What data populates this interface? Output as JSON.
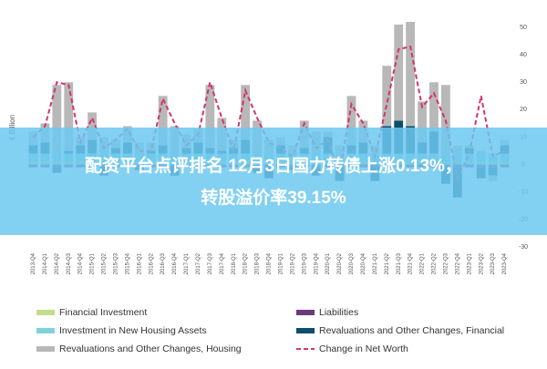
{
  "chart_data": {
    "type": "bar",
    "stacked": true,
    "y_label": "€ Billion",
    "categories": [
      "2013-Q4",
      "2014-Q1",
      "2014-Q2",
      "2014-Q3",
      "2014-Q4",
      "2015-Q1",
      "2015-Q2",
      "2015-Q3",
      "2015-Q4",
      "2016-Q1",
      "2016-Q2",
      "2016-Q3",
      "2016-Q4",
      "2017-Q1",
      "2017-Q2",
      "2017-Q3",
      "2017-Q4",
      "2018-Q1",
      "2018-Q2",
      "2018-Q3",
      "2018-Q4",
      "2019-Q1",
      "2019-Q2",
      "2019-Q3",
      "2019-Q4",
      "2020-Q1",
      "2020-Q2",
      "2020-Q3",
      "2020-Q4",
      "2021-Q1",
      "2021-Q2",
      "2021-Q3",
      "2021-Q4",
      "2022-Q1",
      "2022-Q2",
      "2022-Q3",
      "2022-Q4",
      "2023-Q1",
      "2023-Q2",
      "2023-Q3",
      "2023-Q4"
    ],
    "series": [
      {
        "name": "Financial Investment",
        "type": "bar",
        "color": "#c5dc8c",
        "values": [
          1,
          1,
          1,
          1,
          1,
          1,
          1,
          1,
          1,
          1,
          1,
          1,
          1,
          1,
          1,
          1,
          1,
          1,
          1,
          1,
          1,
          1,
          1,
          1,
          1,
          1,
          1,
          1,
          1,
          1,
          1,
          1,
          1,
          1,
          1,
          1,
          1,
          1,
          1,
          1,
          1
        ]
      },
      {
        "name": "Liabilities",
        "type": "bar",
        "color": "#6b3a7d",
        "values": [
          -1,
          -1,
          -1,
          -1,
          -1,
          -1,
          -1,
          -1,
          -1,
          -1,
          -1,
          -1,
          -1,
          -1,
          -1,
          -1,
          -1,
          -1,
          -1,
          -1,
          -1,
          -1,
          -1,
          -1,
          -1,
          -1,
          -1,
          -1,
          -1,
          -1,
          -1,
          -1,
          -1,
          -1,
          -1,
          -1,
          -1,
          -1,
          -1,
          -1,
          -1
        ]
      },
      {
        "name": "Investment in New Housing Assets",
        "type": "bar",
        "color": "#7fd3d8",
        "values": [
          3,
          3,
          3,
          3,
          3,
          3,
          3,
          3,
          3,
          3,
          3,
          3,
          3,
          3,
          3,
          3,
          3,
          3,
          3,
          3,
          3,
          3,
          3,
          3,
          3,
          3,
          3,
          3,
          3,
          3,
          3,
          3,
          3,
          3,
          3,
          3,
          3,
          3,
          3,
          3,
          3
        ]
      },
      {
        "name": "Revaluations and Other Changes, Financial",
        "type": "bar",
        "color": "#0e4d6b",
        "values": [
          3,
          4,
          -2,
          1,
          3,
          5,
          -3,
          2,
          4,
          -1,
          1,
          3,
          -3,
          2,
          4,
          2,
          1,
          2,
          5,
          -2,
          -4,
          3,
          -1,
          2,
          -3,
          6,
          -5,
          3,
          4,
          -5,
          10,
          12,
          10,
          4,
          8,
          -6,
          -11,
          2,
          -4,
          -3,
          3
        ]
      },
      {
        "name": "Revaluations and Other Changes, Housing",
        "type": "bar",
        "color": "#b8b8b8",
        "values": [
          5,
          7,
          25,
          25,
          3,
          10,
          6,
          3,
          6,
          4,
          3,
          18,
          10,
          5,
          5,
          23,
          12,
          3,
          20,
          12,
          5,
          3,
          3,
          10,
          8,
          2,
          3,
          18,
          8,
          3,
          22,
          35,
          38,
          15,
          18,
          25,
          3,
          1,
          1,
          -2,
          2
        ]
      },
      {
        "name": "Change in Net Worth",
        "type": "line",
        "color": "#d6336c",
        "values": [
          10,
          14,
          30,
          29,
          8,
          17,
          6,
          9,
          13,
          5,
          5,
          24,
          15,
          7,
          11,
          30,
          17,
          5,
          27,
          17,
          8,
          6,
          3,
          15,
          6,
          9,
          -3,
          22,
          15,
          3,
          22,
          42,
          43,
          21,
          26,
          16,
          -5,
          4,
          25,
          3,
          5
        ]
      }
    ],
    "ylim": [
      -30,
      50
    ],
    "yticks": [
      -30,
      -20,
      -10,
      0,
      10,
      20,
      30,
      40,
      50
    ],
    "grid": false,
    "banner": [
      "配资平台点评排名 12月3日国力转债上涨0.13%，",
      "转股溢价率39.15%"
    ]
  }
}
